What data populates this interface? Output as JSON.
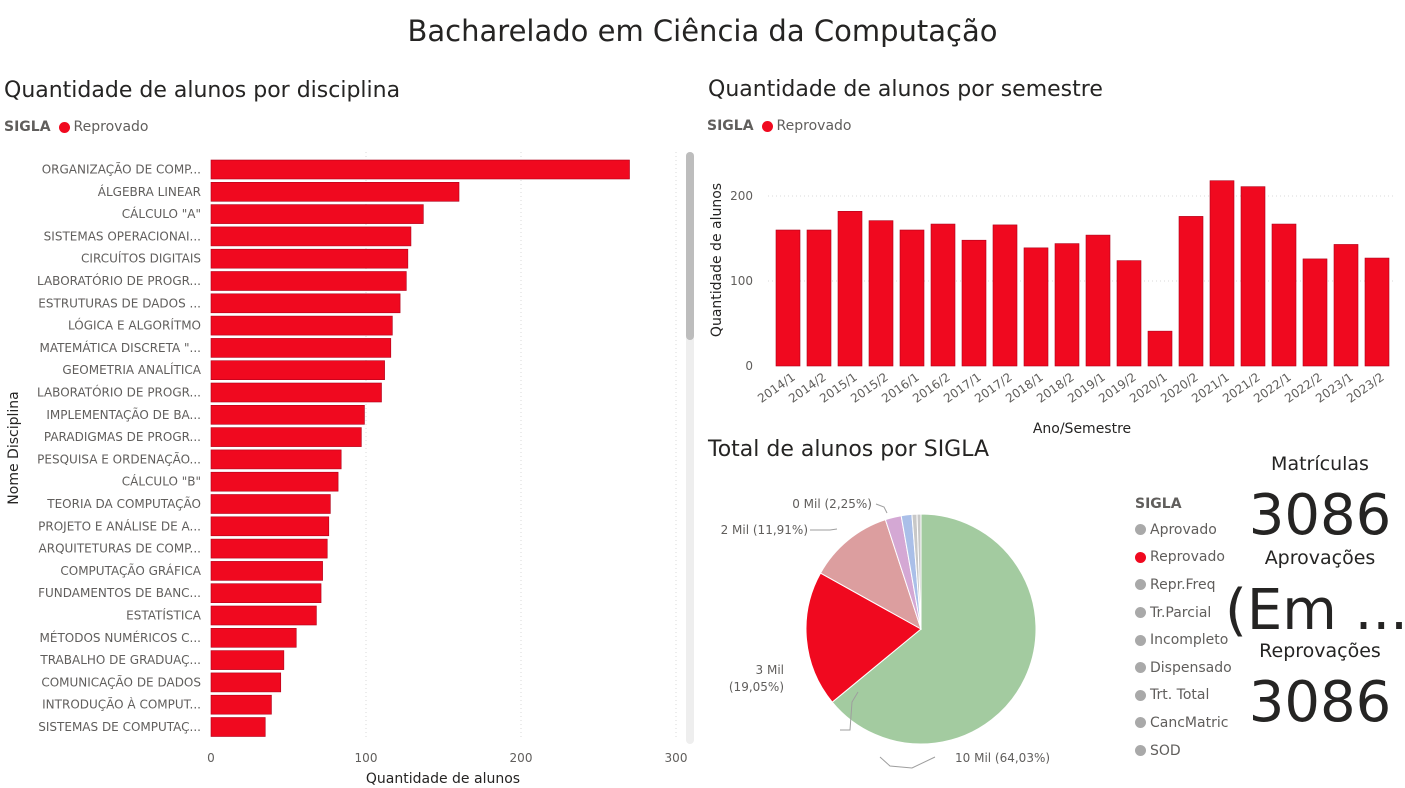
{
  "page_title": "Bacharelado em Ciência da Computação",
  "colors": {
    "reprovado": "#f0091f",
    "aprovado": "#a3cba0",
    "repr_freq": "#dc9e9f",
    "tr_parcial": "#d4a8d4",
    "incompleto": "#aabfe8",
    "other": "#c8c8c8"
  },
  "chart_data": [
    {
      "type": "bar",
      "orientation": "horizontal",
      "title": "Quantidade de alunos por disciplina",
      "legend_key": "SIGLA",
      "legend": [
        "Reprovado"
      ],
      "xlabel": "Quantidade de alunos",
      "ylabel": "Nome Disciplina",
      "xlim": [
        0,
        300
      ],
      "xticks": [
        "0",
        "100",
        "200",
        "300"
      ],
      "grid": true,
      "categories": [
        "ORGANIZAÇÃO DE COMP...",
        "ÁLGEBRA LINEAR",
        "CÁLCULO \"A\"",
        "SISTEMAS OPERACIONAI...",
        "CIRCUÍTOS DIGITAIS",
        "LABORATÓRIO DE PROGR...",
        "ESTRUTURAS DE DADOS ...",
        "LÓGICA E ALGORÍTMO",
        "MATEMÁTICA DISCRETA \"...",
        "GEOMETRIA ANALÍTICA",
        "LABORATÓRIO DE PROGR...",
        "IMPLEMENTAÇÃO DE BA...",
        "PARADIGMAS DE PROGR...",
        "PESQUISA E ORDENAÇÃO...",
        "CÁLCULO \"B\"",
        "TEORIA DA COMPUTAÇÃO",
        "PROJETO E ANÁLISE DE A...",
        "ARQUITETURAS DE COMP...",
        "COMPUTAÇÃO GRÁFICA",
        "FUNDAMENTOS DE BANC...",
        "ESTATÍSTICA",
        "MÉTODOS NUMÉRICOS C...",
        "TRABALHO DE GRADUAÇ...",
        "COMUNICAÇÃO DE DADOS",
        "INTRODUÇÃO À COMPUT...",
        "SISTEMAS DE COMPUTAÇ..."
      ],
      "values": [
        270,
        160,
        137,
        129,
        127,
        126,
        122,
        117,
        116,
        112,
        110,
        99,
        97,
        84,
        82,
        77,
        76,
        75,
        72,
        71,
        68,
        55,
        47,
        45,
        39,
        35
      ]
    },
    {
      "type": "bar",
      "title": "Quantidade de alunos por semestre",
      "legend_key": "SIGLA",
      "legend": [
        "Reprovado"
      ],
      "xlabel": "Ano/Semestre",
      "ylabel": "Quantidade de alunos",
      "ylim": [
        0,
        200
      ],
      "yticks": [
        "0",
        "100",
        "200"
      ],
      "grid": true,
      "categories": [
        "2014/1",
        "2014/2",
        "2015/1",
        "2015/2",
        "2016/1",
        "2016/2",
        "2017/1",
        "2017/2",
        "2018/1",
        "2018/2",
        "2019/1",
        "2019/2",
        "2020/1",
        "2020/2",
        "2021/1",
        "2021/2",
        "2022/1",
        "2022/2",
        "2023/1",
        "2023/2"
      ],
      "values": [
        160,
        160,
        182,
        171,
        160,
        167,
        148,
        166,
        139,
        144,
        154,
        124,
        41,
        176,
        218,
        211,
        167,
        126,
        143,
        127
      ]
    },
    {
      "type": "pie",
      "title": "Total de alunos por SIGLA",
      "legend_title": "SIGLA",
      "legend": [
        "Aprovado",
        "Reprovado",
        "Repr.Freq",
        "Tr.Parcial",
        "Incompleto",
        "Dispensado",
        "Trt. Total",
        "CancMatric",
        "SOD"
      ],
      "slices": [
        {
          "name": "Aprovado",
          "percent": 64.03,
          "label": "10 Mil (64,03%)"
        },
        {
          "name": "Reprovado",
          "percent": 19.05,
          "label_line1": "3 Mil",
          "label_line2": "(19,05%)"
        },
        {
          "name": "Repr.Freq",
          "percent": 11.91,
          "label": "2 Mil (11,91%)"
        },
        {
          "name": "Tr.Parcial",
          "percent": 2.25,
          "label": "0 Mil (2,25%)"
        },
        {
          "name": "Incompleto",
          "percent": 1.5
        },
        {
          "name": "Dispensado",
          "percent": 0.7
        },
        {
          "name": "Trt. Total",
          "percent": 0.56
        }
      ]
    }
  ],
  "cards": [
    {
      "label": "Matrículas",
      "value": "3086"
    },
    {
      "label": "Aprovações",
      "value": "(Em ..."
    },
    {
      "label": "Reprovações",
      "value": "3086"
    }
  ]
}
